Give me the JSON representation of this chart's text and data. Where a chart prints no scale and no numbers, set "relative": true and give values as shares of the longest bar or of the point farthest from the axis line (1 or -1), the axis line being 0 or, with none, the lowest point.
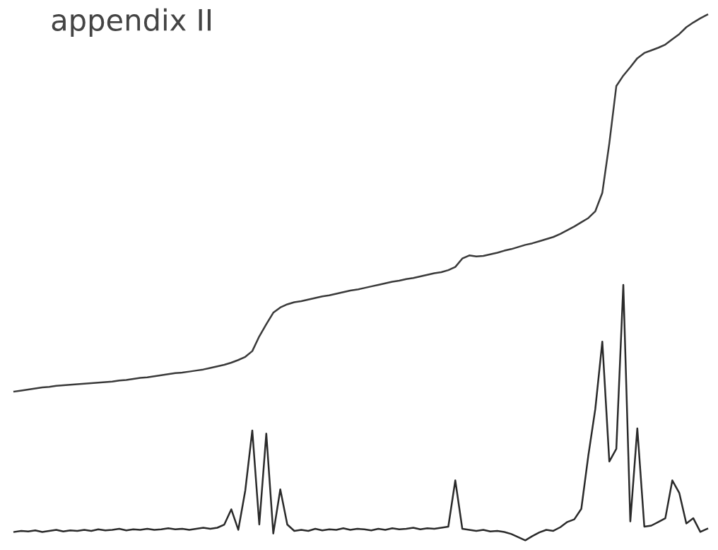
{
  "chart_data": {
    "type": "line",
    "title": "appendix II",
    "relative": true,
    "marker": "none",
    "line_style": "solid",
    "categories": [
      null,
      null,
      null,
      null,
      null,
      null,
      null,
      null,
      null,
      null,
      null,
      null,
      null,
      null,
      null,
      null,
      null,
      null,
      null,
      null,
      null,
      null,
      null,
      null,
      null,
      null,
      null,
      null,
      null,
      null,
      null,
      null,
      null,
      null,
      null,
      null,
      null,
      null,
      null,
      null,
      null,
      null,
      null,
      null,
      null,
      null,
      null,
      null,
      null,
      null,
      null,
      null,
      null,
      null,
      null,
      null,
      null,
      null,
      null,
      null,
      null,
      null,
      null,
      null,
      null,
      null,
      null,
      null,
      null,
      null,
      null,
      null,
      null,
      null,
      null,
      null,
      null,
      null,
      null,
      null,
      null,
      null,
      null,
      null,
      null,
      null,
      null,
      null,
      null,
      null,
      null,
      null,
      null,
      null,
      null,
      null,
      null,
      null,
      null,
      null
    ],
    "series": [
      {
        "color": "#3a3a3a",
        "values": [
          0.283,
          0.285,
          0.287,
          0.289,
          0.291,
          0.292,
          0.294,
          0.295,
          0.296,
          0.297,
          0.298,
          0.299,
          0.3,
          0.301,
          0.302,
          0.304,
          0.305,
          0.307,
          0.309,
          0.31,
          0.312,
          0.314,
          0.316,
          0.318,
          0.319,
          0.321,
          0.323,
          0.325,
          0.328,
          0.331,
          0.334,
          0.338,
          0.343,
          0.349,
          0.36,
          0.388,
          0.411,
          0.433,
          0.443,
          0.449,
          0.453,
          0.455,
          0.458,
          0.461,
          0.464,
          0.466,
          0.469,
          0.472,
          0.475,
          0.477,
          0.48,
          0.483,
          0.486,
          0.489,
          0.492,
          0.494,
          0.497,
          0.499,
          0.502,
          0.505,
          0.508,
          0.51,
          0.514,
          0.52,
          0.536,
          0.542,
          0.54,
          0.541,
          0.544,
          0.547,
          0.551,
          0.554,
          0.558,
          0.562,
          0.565,
          0.569,
          0.573,
          0.577,
          0.583,
          0.59,
          0.597,
          0.605,
          0.613,
          0.626,
          0.661,
          0.755,
          0.864,
          0.884,
          0.9,
          0.917,
          0.927,
          0.932,
          0.937,
          0.943,
          0.953,
          0.963,
          0.976,
          0.985,
          0.993,
          1
        ]
      },
      {
        "color": "#2a2a2a",
        "values": [
          0.016,
          0.018,
          0.017,
          0.019,
          0.016,
          0.018,
          0.02,
          0.017,
          0.019,
          0.018,
          0.02,
          0.018,
          0.021,
          0.019,
          0.02,
          0.022,
          0.019,
          0.021,
          0.02,
          0.022,
          0.02,
          0.021,
          0.023,
          0.021,
          0.022,
          0.02,
          0.022,
          0.024,
          0.022,
          0.024,
          0.03,
          0.059,
          0.02,
          0.095,
          0.209,
          0.03,
          0.203,
          0.013,
          0.097,
          0.03,
          0.018,
          0.02,
          0.018,
          0.022,
          0.019,
          0.021,
          0.02,
          0.023,
          0.02,
          0.022,
          0.021,
          0.019,
          0.022,
          0.02,
          0.023,
          0.021,
          0.022,
          0.024,
          0.021,
          0.023,
          0.022,
          0.024,
          0.026,
          0.114,
          0.022,
          0.02,
          0.018,
          0.02,
          0.017,
          0.018,
          0.016,
          0.012,
          0.006,
          0,
          0.008,
          0.015,
          0.02,
          0.018,
          0.025,
          0.035,
          0.04,
          0.06,
          0.161,
          0.25,
          0.378,
          0.15,
          0.174,
          0.486,
          0.036,
          0.213,
          0.026,
          0.028,
          0.035,
          0.042,
          0.114,
          0.09,
          0.032,
          0.042,
          0.016,
          0.022
        ]
      }
    ]
  }
}
